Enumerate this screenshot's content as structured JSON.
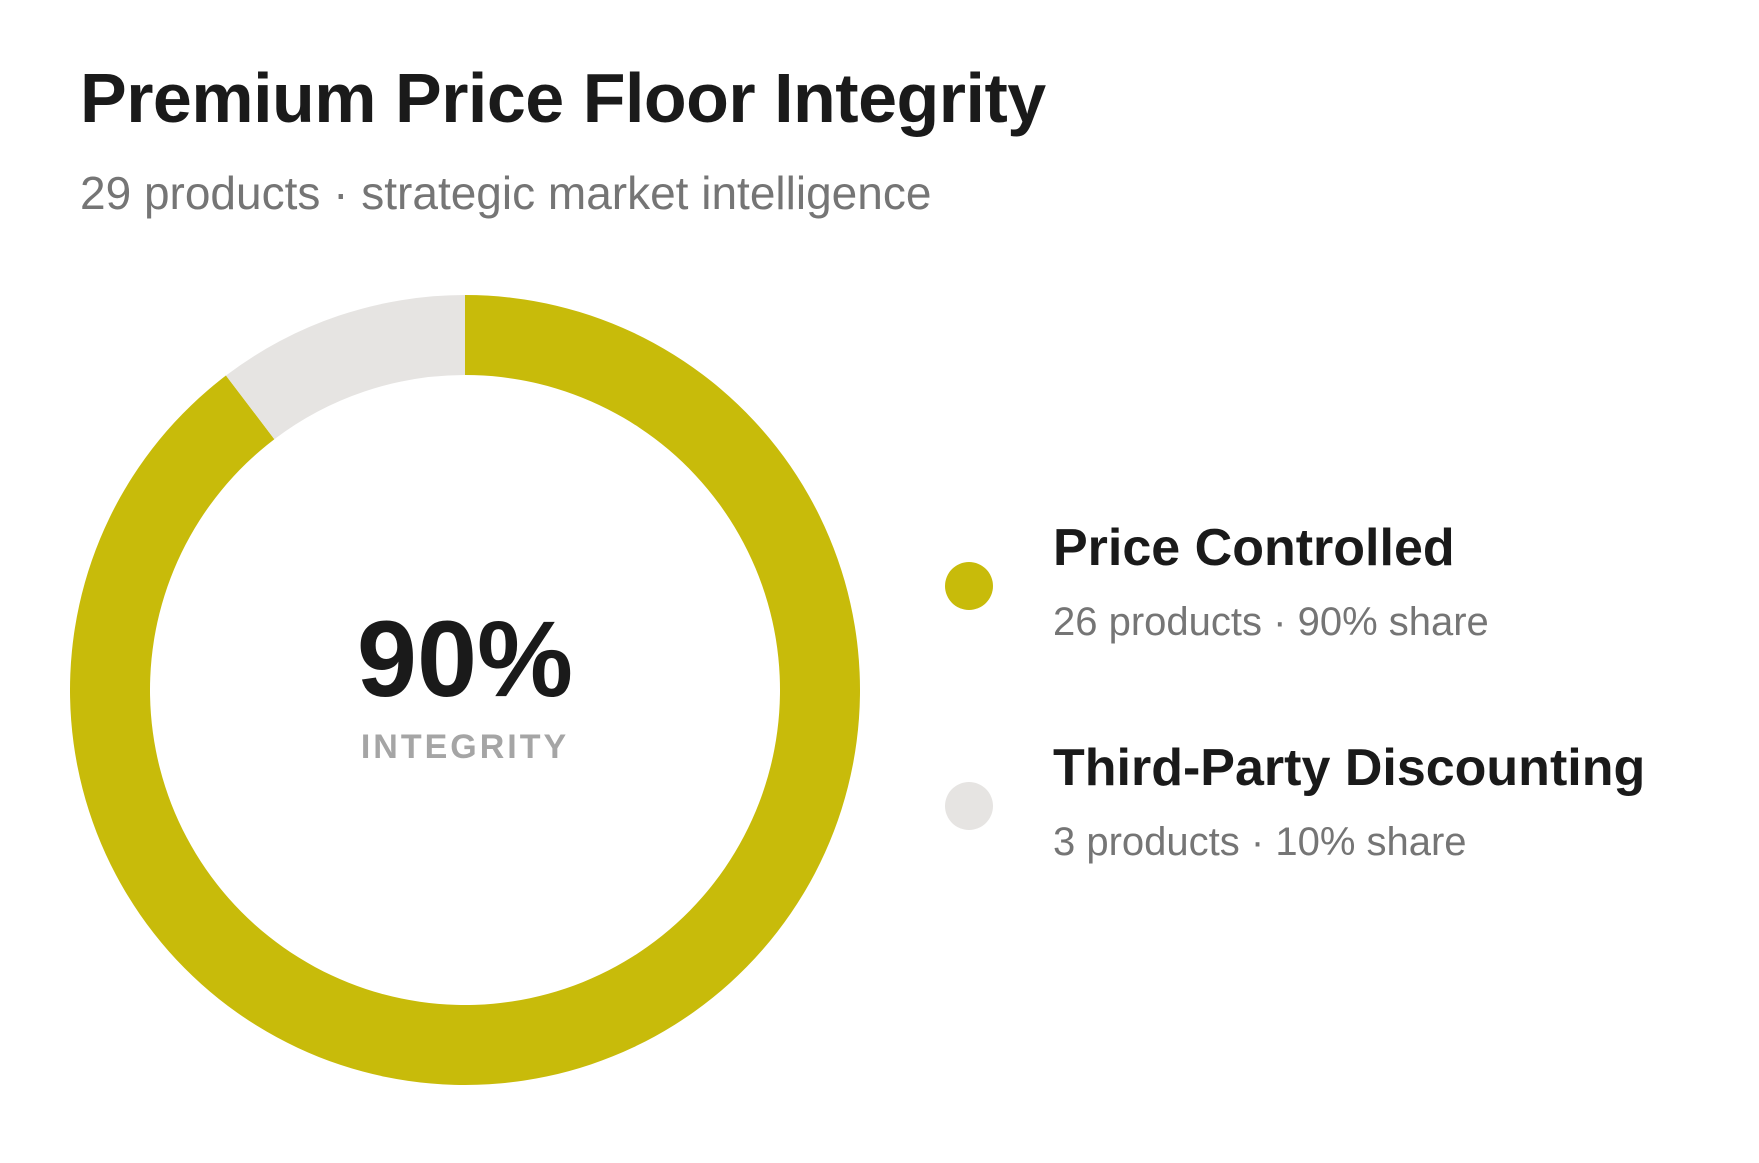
{
  "header": {
    "title": "Premium Price Floor Integrity",
    "subtitle": "29 products · strategic market intelligence"
  },
  "center": {
    "value": "90%",
    "label": "INTEGRITY"
  },
  "legend": [
    {
      "name": "Price Controlled",
      "detail": "26 products · 90% share",
      "color": "#c8bb0a"
    },
    {
      "name": "Third-Party Discounting",
      "detail": "3 products · 10% share",
      "color": "#e6e4e2"
    }
  ],
  "chart_data": {
    "type": "pie",
    "variant": "donut",
    "title": "Premium Price Floor Integrity",
    "subtitle": "29 products · strategic market intelligence",
    "categories": [
      "Price Controlled",
      "Third-Party Discounting"
    ],
    "values": [
      26,
      3
    ],
    "shares_percent": [
      90,
      10
    ],
    "colors": [
      "#c8bb0a",
      "#e6e4e2"
    ],
    "center_text": "90%",
    "center_label": "INTEGRITY",
    "legend_position": "right"
  }
}
